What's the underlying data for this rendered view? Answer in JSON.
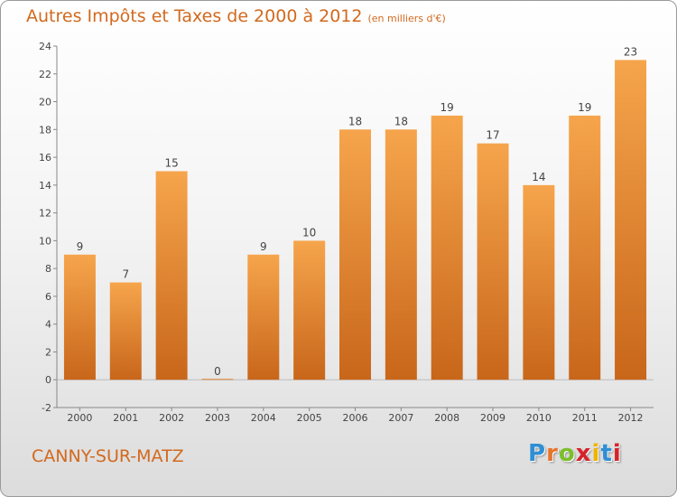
{
  "header": {
    "title": "Autres Impôts et Taxes de 2000 à 2012",
    "unit": "(en milliers d'€)"
  },
  "footer": {
    "place": "CANNY-SUR-MATZ",
    "logo": "Proxiti"
  },
  "colors": {
    "title": "#d2691e",
    "bar_top": "#f6a54c",
    "bar_bottom": "#c8661a",
    "logo_letters": [
      "#2e8fd4",
      "#e8742a",
      "#7bbf2a",
      "#d6222a",
      "#f0b400",
      "#2e8fd4",
      "#d6222a"
    ]
  },
  "chart_data": {
    "type": "bar",
    "title": "Autres Impôts et Taxes de 2000 à 2012",
    "subtitle": "(en milliers d'€)",
    "categories": [
      "2000",
      "2001",
      "2002",
      "2003",
      "2004",
      "2005",
      "2006",
      "2007",
      "2008",
      "2009",
      "2010",
      "2011",
      "2012"
    ],
    "values": [
      9,
      7,
      15,
      0,
      9,
      10,
      18,
      18,
      19,
      17,
      14,
      19,
      23
    ],
    "ylim": [
      -2,
      24
    ],
    "yticks": [
      -2,
      0,
      2,
      4,
      6,
      8,
      10,
      12,
      14,
      16,
      18,
      20,
      22,
      24
    ],
    "xlabel": "",
    "ylabel": "",
    "grid": false,
    "legend": "none",
    "data_labels": true
  }
}
